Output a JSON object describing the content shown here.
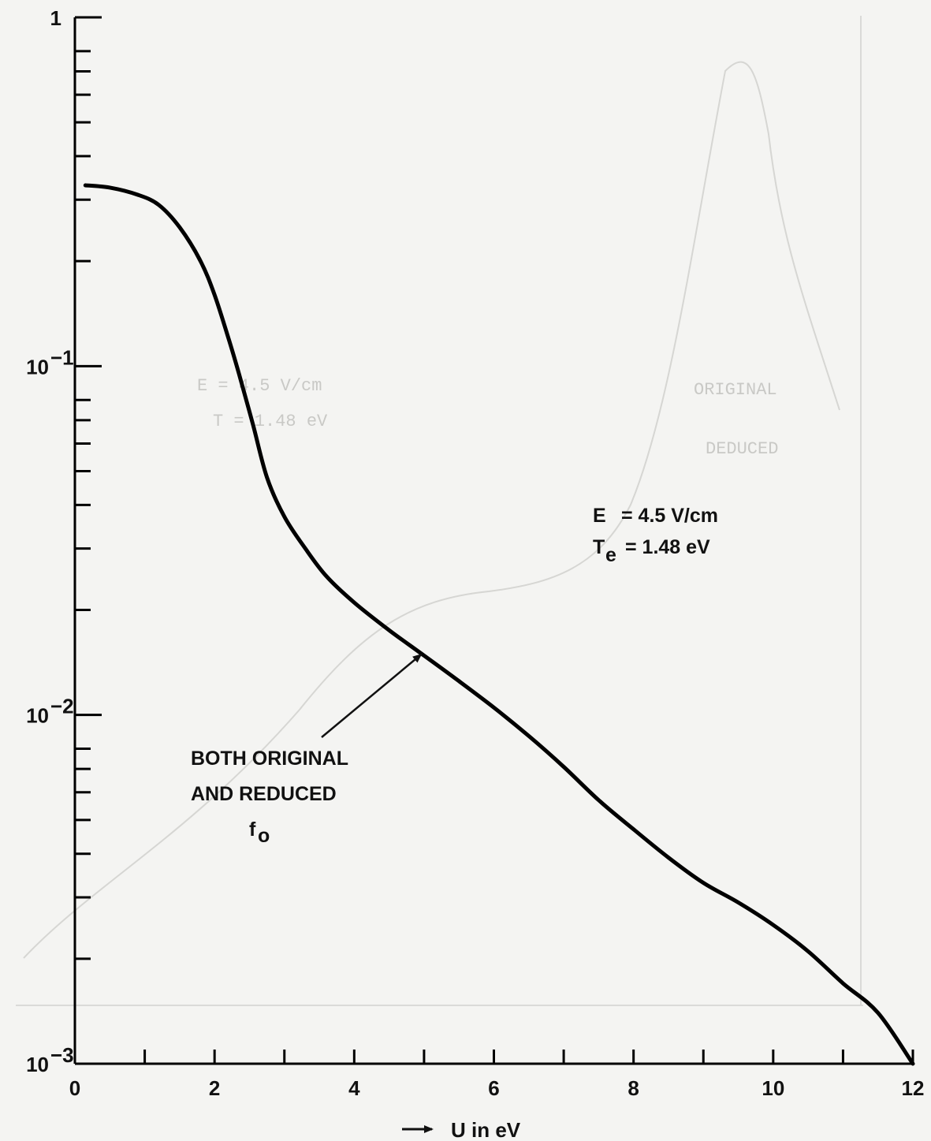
{
  "chart_data": {
    "type": "line",
    "xlabel": "U in eV",
    "ylabel": "",
    "xlim": [
      0,
      12
    ],
    "ylim": [
      0.001,
      1
    ],
    "y_scale": "log",
    "grid": false,
    "x_ticks": [
      0,
      2,
      4,
      6,
      8,
      10,
      12
    ],
    "x_minor_ticks": [
      1,
      3,
      5,
      7,
      9,
      11
    ],
    "y_ticks": [
      {
        "value": 1,
        "label": "1"
      },
      {
        "value": 0.1,
        "label": "10",
        "exp": "−1"
      },
      {
        "value": 0.01,
        "label": "10",
        "exp": "−2"
      },
      {
        "value": 0.001,
        "label": "10",
        "exp": "−3"
      }
    ],
    "y_minor_ticks": [
      0.2,
      0.3,
      0.4,
      0.5,
      0.6,
      0.7,
      0.8,
      0.02,
      0.03,
      0.04,
      0.05,
      0.06,
      0.07,
      0.08,
      0.002,
      0.003,
      0.004,
      0.005,
      0.006,
      0.007,
      0.008
    ],
    "series": [
      {
        "name": "",
        "color": "#000000",
        "x": [
          0.15,
          0.5,
          0.9,
          1.2,
          1.5,
          1.8,
          2.0,
          2.2,
          2.35,
          2.55,
          2.75,
          3.0,
          3.3,
          3.6,
          4.0,
          4.5,
          5.0,
          5.5,
          6.0,
          6.5,
          7.0,
          7.5,
          8.0,
          8.5,
          9.0,
          9.5,
          10.0,
          10.5,
          11.0,
          11.5,
          12.0
        ],
        "y": [
          0.33,
          0.325,
          0.31,
          0.29,
          0.25,
          0.2,
          0.16,
          0.12,
          0.095,
          0.068,
          0.048,
          0.037,
          0.03,
          0.025,
          0.021,
          0.0175,
          0.0148,
          0.0125,
          0.0105,
          0.0087,
          0.0071,
          0.0057,
          0.0047,
          0.0039,
          0.0033,
          0.0029,
          0.0025,
          0.0021,
          0.0017,
          0.0014,
          0.001
        ]
      }
    ],
    "annotations": {
      "params_line1_label": "E",
      "params_line1_value": "=  4.5 V/cm",
      "params_line2_label": "T",
      "params_line2_sub": "e",
      "params_line2_value": "= 1.48 eV",
      "curve_note_line1": "BOTH ORIGINAL",
      "curve_note_line2": "AND REDUCED",
      "curve_note_line3": "f",
      "curve_note_line3_sub": "o",
      "arrow_to_x": 5.0,
      "arrow_to_y": 0.0152
    }
  },
  "colors": {
    "ink": "#000000",
    "paper": "#f4f4f2",
    "ghost": "#cfcfcc"
  }
}
